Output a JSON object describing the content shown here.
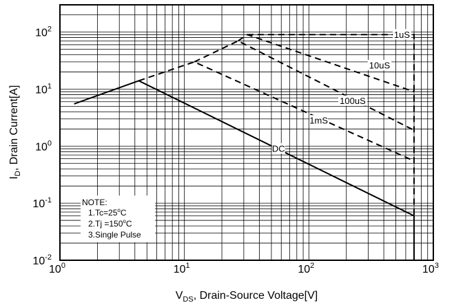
{
  "chart_data": {
    "type": "line",
    "title": "",
    "xlabel": "VDS, Drain-Source Voltage[V]",
    "xlabel_parts": {
      "main": "V",
      "sub": "DS",
      "rest": ", Drain-Source Voltage[V]"
    },
    "ylabel": "ID, Drain Current[A]",
    "ylabel_parts": {
      "main": "I",
      "sub": "D",
      "rest": ", Drain Current[A]"
    },
    "x_scale": "log",
    "y_scale": "log",
    "xlim": [
      1,
      1000
    ],
    "ylim": [
      0.01,
      300
    ],
    "grid": true,
    "x_ticks": [
      {
        "value": 1,
        "base": "10",
        "exp": "0"
      },
      {
        "value": 10,
        "base": "10",
        "exp": "1"
      },
      {
        "value": 100,
        "base": "10",
        "exp": "2"
      },
      {
        "value": 1000,
        "base": "10",
        "exp": "3"
      }
    ],
    "y_ticks": [
      {
        "value": 0.01,
        "base": "10",
        "exp": "-2"
      },
      {
        "value": 0.1,
        "base": "10",
        "exp": "-1"
      },
      {
        "value": 1,
        "base": "10",
        "exp": "0"
      },
      {
        "value": 10,
        "base": "10",
        "exp": "1"
      },
      {
        "value": 100,
        "base": "10",
        "exp": "2"
      }
    ],
    "series": [
      {
        "name": "DC",
        "style": "solid",
        "x": [
          1.3,
          4.3,
          700,
          700
        ],
        "y": [
          5.5,
          14,
          0.06,
          0.01
        ],
        "label_at": [
          57,
          0.9
        ]
      },
      {
        "name": "1mS",
        "style": "dashed",
        "x": [
          4.3,
          12,
          700
        ],
        "y": [
          14,
          30,
          0.55
        ],
        "label_at": [
          120,
          2.8
        ]
      },
      {
        "name": "100uS",
        "style": "dashed",
        "x": [
          12,
          27,
          700
        ],
        "y": [
          30,
          70,
          1.9
        ],
        "label_at": [
          225,
          6.2
        ]
      },
      {
        "name": "10uS",
        "style": "dashed",
        "x": [
          27,
          32,
          700
        ],
        "y": [
          70,
          90,
          9
        ],
        "label_at": [
          370,
          26
        ]
      },
      {
        "name": "1uS",
        "style": "dashed",
        "x": [
          32,
          700,
          700
        ],
        "y": [
          90,
          90,
          0.01
        ],
        "label_at": [
          560,
          90
        ]
      }
    ],
    "annotation": {
      "lines": [
        "NOTE:",
        "1.Tc=25°C",
        "2.Tj =150°C",
        "3.Single Pulse"
      ],
      "parts": [
        {
          "pre": "NOTE:",
          "sup": "",
          "post": ""
        },
        {
          "pre": "1.Tc=25",
          "sup": "o",
          "post": "C"
        },
        {
          "pre": "2.Tj =150",
          "sup": "o",
          "post": "C"
        },
        {
          "pre": "3.Single Pulse",
          "sup": "",
          "post": ""
        }
      ]
    }
  }
}
